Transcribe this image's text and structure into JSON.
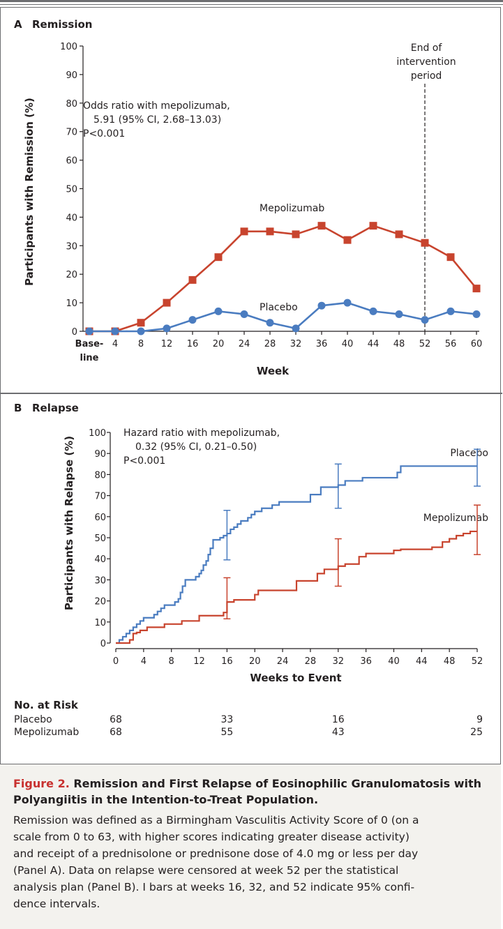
{
  "chart_data": [
    {
      "type": "line",
      "panel_label": "A",
      "title": "Remission",
      "ylabel": "Participants with Remission (%)",
      "xlabel": "Week",
      "ylim": [
        0,
        100
      ],
      "yticks": [
        0,
        10,
        20,
        30,
        40,
        50,
        60,
        70,
        80,
        90,
        100
      ],
      "x_ticks": [
        0,
        4,
        8,
        12,
        16,
        20,
        24,
        28,
        32,
        36,
        40,
        44,
        48,
        52,
        56,
        60
      ],
      "x_tick_labels": [
        "Base-\nline",
        "4",
        "8",
        "12",
        "16",
        "20",
        "24",
        "28",
        "32",
        "36",
        "40",
        "44",
        "48",
        "52",
        "56",
        "60"
      ],
      "series": [
        {
          "name": "Mepolizumab",
          "marker": "square",
          "color": "#c8442e",
          "x": [
            0,
            4,
            8,
            12,
            16,
            20,
            24,
            28,
            32,
            36,
            40,
            44,
            48,
            52,
            56,
            60
          ],
          "values": [
            0,
            0,
            3,
            10,
            18,
            26,
            35,
            35,
            34,
            37,
            32,
            37,
            34,
            31,
            26,
            15
          ]
        },
        {
          "name": "Placebo",
          "marker": "circle",
          "color": "#4a7cc0",
          "x": [
            0,
            4,
            8,
            12,
            16,
            20,
            24,
            28,
            32,
            36,
            40,
            44,
            48,
            52,
            56,
            60
          ],
          "values": [
            0,
            0,
            0,
            1,
            4,
            7,
            6,
            3,
            1,
            9,
            10,
            7,
            6,
            4,
            7,
            6
          ]
        }
      ],
      "annotations": {
        "stat_lines": [
          "Odds ratio with mepolizumab,",
          "5.91 (95% CI, 2.68–13.03)",
          "P<0.001"
        ],
        "end_line_label": [
          "End of",
          "intervention",
          "period"
        ],
        "end_line_x": 52
      }
    },
    {
      "type": "line",
      "subtype": "step",
      "panel_label": "B",
      "title": "Relapse",
      "ylabel": "Participants with Relapse (%)",
      "xlabel": "Weeks to Event",
      "ylim": [
        0,
        100
      ],
      "xlim": [
        0,
        52
      ],
      "yticks": [
        0,
        10,
        20,
        30,
        40,
        50,
        60,
        70,
        80,
        90,
        100
      ],
      "x_ticks": [
        0,
        4,
        8,
        12,
        16,
        20,
        24,
        28,
        32,
        36,
        40,
        44,
        48,
        52
      ],
      "series": [
        {
          "name": "Placebo",
          "color": "#4a7cc0",
          "x": [
            0,
            0.5,
            1,
            1.5,
            2,
            2.5,
            3,
            3.5,
            4,
            5.5,
            6,
            6.5,
            7,
            8.5,
            9,
            9.3,
            9.6,
            10,
            11.5,
            12,
            12.3,
            12.6,
            13,
            13.3,
            13.6,
            14,
            15,
            15.5,
            16,
            16.5,
            17,
            17.5,
            18,
            19,
            19.5,
            20,
            21,
            22.5,
            23.5,
            28,
            29.5,
            32,
            33,
            35.5,
            40.5,
            41,
            52
          ],
          "values": [
            0,
            1.5,
            3,
            4.5,
            6,
            7.5,
            9,
            10.5,
            12,
            13.5,
            15,
            16.5,
            18,
            19.5,
            21,
            24,
            27,
            30,
            31.5,
            33,
            34.5,
            37,
            39,
            42,
            45,
            49,
            50,
            51,
            52,
            54,
            55,
            56.5,
            58,
            59.5,
            61,
            62.5,
            64,
            65.5,
            67,
            70.5,
            74,
            75,
            77,
            78.5,
            81,
            84,
            84
          ]
        },
        {
          "name": "Mepolizumab",
          "color": "#c8442e",
          "x": [
            0,
            2,
            2.5,
            3,
            3.5,
            4.5,
            7,
            9.5,
            12,
            15.5,
            16,
            17,
            20,
            20.5,
            26,
            29,
            30,
            32,
            33,
            35,
            36,
            40,
            41,
            45.5,
            47,
            48,
            49,
            50,
            51,
            52
          ],
          "values": [
            0,
            1.5,
            4.5,
            5,
            6,
            7.5,
            9,
            10.5,
            13,
            14.5,
            19.5,
            20.5,
            23,
            25,
            29.5,
            33,
            35,
            36.5,
            37.5,
            41,
            42.5,
            44,
            44.5,
            45.5,
            48,
            49.5,
            51,
            52,
            53,
            53
          ]
        }
      ],
      "error_bars": [
        {
          "series": "Placebo",
          "x": 16,
          "low": 39.5,
          "high": 63
        },
        {
          "series": "Placebo",
          "x": 32,
          "low": 64,
          "high": 85
        },
        {
          "series": "Placebo",
          "x": 52,
          "low": 74.5,
          "high": 92
        },
        {
          "series": "Mepolizumab",
          "x": 16,
          "low": 11.5,
          "high": 31
        },
        {
          "series": "Mepolizumab",
          "x": 32,
          "low": 27,
          "high": 49.5
        },
        {
          "series": "Mepolizumab",
          "x": 52,
          "low": 42,
          "high": 65.5
        }
      ],
      "annotations": {
        "stat_lines": [
          "Hazard ratio with mepolizumab,",
          "0.32 (95% CI, 0.21–0.50)",
          "P<0.001"
        ]
      },
      "risk_table": {
        "title": "No. at Risk",
        "weeks": [
          0,
          16,
          32,
          52
        ],
        "rows": [
          {
            "label": "Placebo",
            "values": [
              "68",
              "33",
              "16",
              "9"
            ]
          },
          {
            "label": "Mepolizumab",
            "values": [
              "68",
              "55",
              "43",
              "25"
            ]
          }
        ]
      }
    }
  ],
  "caption": {
    "figure_label": "Figure 2.",
    "title_rest": " Remission and First Relapse of Eosinophilic Granulomatosis with Polyangiitis in the Intention-to-Treat Population.",
    "body_lines": [
      "Remission was defined as a Birmingham Vasculitis Activity Score of 0 (on a",
      "scale from 0 to 63, with higher scores indicating greater disease activity)",
      "and receipt of a prednisolone or prednisone dose of 4.0 mg or less per day",
      "(Panel A). Data on relapse were censored at week 52 per the statistical",
      "analysis plan (Panel B). I bars at weeks 16, 32, and 52 indicate 95% confi-",
      "dence intervals."
    ]
  }
}
